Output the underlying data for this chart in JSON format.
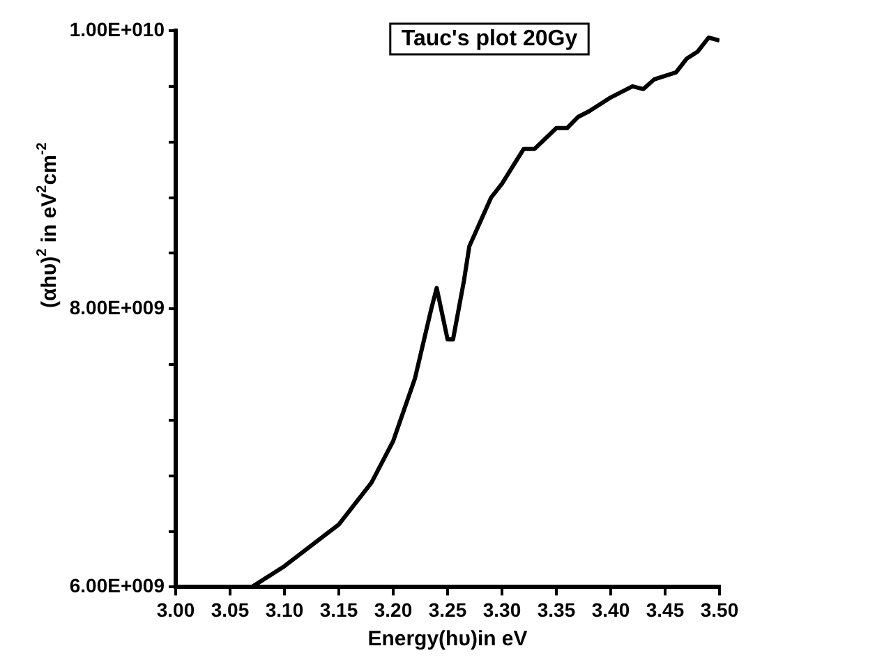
{
  "chart_data": {
    "type": "line",
    "title": "Tauc's plot 20Gy",
    "xlabel": "Energy(hυ)in eV",
    "ylabel": "(αhυ)$^{2}$ in eV$^{2}$cm$^{-2}$",
    "x": [
      3.07,
      3.1,
      3.15,
      3.18,
      3.2,
      3.22,
      3.235,
      3.24,
      3.25,
      3.255,
      3.265,
      3.27,
      3.29,
      3.3,
      3.32,
      3.33,
      3.35,
      3.36,
      3.37,
      3.38,
      3.4,
      3.42,
      3.43,
      3.44,
      3.46,
      3.47,
      3.48,
      3.49,
      3.5
    ],
    "series": [
      {
        "color": "#000000",
        "values": [
          6000000000.0,
          6150000000.0,
          6450000000.0,
          6750000000.0,
          7050000000.0,
          7500000000.0,
          8000000000.0,
          8150000000.0,
          7780000000.0,
          7780000000.0,
          8200000000.0,
          8450000000.0,
          8800000000.0,
          8900000000.0,
          9150000000.0,
          9150000000.0,
          9300000000.0,
          9300000000.0,
          9380000000.0,
          9420000000.0,
          9520000000.0,
          9600000000.0,
          9580000000.0,
          9650000000.0,
          9700000000.0,
          9800000000.0,
          9850000000.0,
          9950000000.0,
          9930000000.0
        ]
      }
    ],
    "xlim": [
      3.0,
      3.5
    ],
    "xticks": [
      {
        "value": 3.0,
        "label": "3.00"
      },
      {
        "value": 3.05,
        "label": "3.05"
      },
      {
        "value": 3.1,
        "label": "3.10"
      },
      {
        "value": 3.15,
        "label": "3.15"
      },
      {
        "value": 3.2,
        "label": "3.20"
      },
      {
        "value": 3.25,
        "label": "3.25"
      },
      {
        "value": 3.3,
        "label": "3.30"
      },
      {
        "value": 3.35,
        "label": "3.35"
      },
      {
        "value": 3.4,
        "label": "3.40"
      },
      {
        "value": 3.45,
        "label": "3.45"
      },
      {
        "value": 3.5,
        "label": "3.50"
      }
    ],
    "ylim": [
      6000000000.0,
      10000000000.0
    ],
    "yticks": [
      {
        "value": 6000000000.0,
        "label": "6.00E+009"
      },
      {
        "value": 6400000000.0,
        "label": null
      },
      {
        "value": 6800000000.0,
        "label": null
      },
      {
        "value": 7200000000.0,
        "label": null
      },
      {
        "value": 7600000000.0,
        "label": null
      },
      {
        "value": 8000000000.0,
        "label": "8.00E+009"
      },
      {
        "value": 8400000000.0,
        "label": null
      },
      {
        "value": 8800000000.0,
        "label": null
      },
      {
        "value": 9200000000.0,
        "label": null
      },
      {
        "value": 9600000000.0,
        "label": null
      },
      {
        "value": 10000000000.0,
        "label": "1.00E+010"
      }
    ],
    "grid": false,
    "legend": false,
    "marker": "none",
    "line_style": "solid"
  }
}
